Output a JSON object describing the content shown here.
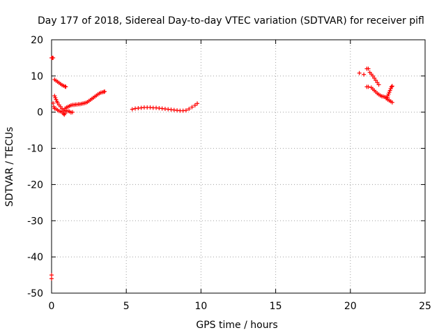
{
  "chart_data": {
    "type": "scatter",
    "title": "Day 177 of 2018, Sidereal Day-to-day VTEC variation (SDTVAR) for receiver pifl",
    "xlabel": "GPS time / hours",
    "ylabel": "SDTVAR / TECUs",
    "xlim": [
      0,
      25
    ],
    "ylim": [
      -50,
      20
    ],
    "xticks": [
      0,
      5,
      10,
      15,
      20,
      25
    ],
    "yticks": [
      -50,
      -40,
      -30,
      -20,
      -10,
      0,
      10,
      20
    ],
    "xtick_labels": [
      "0",
      "5",
      "10",
      "15",
      "20",
      "25"
    ],
    "ytick_labels": [
      "-50",
      "-40",
      "-30",
      "-20",
      "-10",
      "0",
      "10",
      "20"
    ],
    "grid": true,
    "marker": "+",
    "color": "#ff0000",
    "series": [
      {
        "points": [
          [
            0.0,
            15.0
          ],
          [
            0.05,
            15.0
          ],
          [
            0.1,
            15.0
          ],
          [
            0.0,
            -45.0
          ],
          [
            0.0,
            -46.0
          ],
          [
            0.2,
            9.0
          ],
          [
            0.3,
            8.7
          ],
          [
            0.4,
            8.4
          ],
          [
            0.5,
            8.1
          ],
          [
            0.6,
            7.8
          ],
          [
            0.7,
            7.5
          ],
          [
            0.8,
            7.3
          ],
          [
            0.9,
            7.1
          ],
          [
            0.95,
            7.0
          ],
          [
            0.1,
            2.5
          ],
          [
            0.15,
            1.5
          ],
          [
            0.2,
            1.0
          ],
          [
            0.3,
            0.9
          ],
          [
            0.4,
            0.6
          ],
          [
            0.5,
            0.3
          ],
          [
            0.6,
            0.2
          ],
          [
            0.7,
            0.0
          ],
          [
            0.8,
            -0.4
          ],
          [
            0.85,
            -0.7
          ],
          [
            0.9,
            -0.3
          ],
          [
            0.2,
            4.5
          ],
          [
            0.25,
            4.0
          ],
          [
            0.3,
            3.5
          ],
          [
            0.35,
            3.0
          ],
          [
            0.4,
            2.6
          ],
          [
            0.5,
            2.0
          ],
          [
            0.6,
            1.5
          ],
          [
            0.7,
            1.0
          ],
          [
            0.8,
            0.6
          ],
          [
            0.9,
            0.3
          ],
          [
            1.0,
            0.4
          ],
          [
            1.1,
            0.3
          ],
          [
            1.2,
            0.2
          ],
          [
            1.3,
            -0.1
          ],
          [
            1.4,
            0.0
          ],
          [
            0.9,
            1.0
          ],
          [
            1.0,
            1.3
          ],
          [
            1.1,
            1.5
          ],
          [
            1.2,
            1.7
          ],
          [
            1.3,
            1.9
          ],
          [
            1.4,
            2.0
          ],
          [
            1.5,
            2.0
          ],
          [
            1.6,
            2.1
          ],
          [
            1.7,
            2.1
          ],
          [
            1.8,
            2.2
          ],
          [
            1.9,
            2.2
          ],
          [
            2.0,
            2.3
          ],
          [
            2.1,
            2.4
          ],
          [
            2.2,
            2.5
          ],
          [
            2.3,
            2.6
          ],
          [
            2.4,
            2.8
          ],
          [
            2.5,
            3.1
          ],
          [
            2.6,
            3.4
          ],
          [
            2.7,
            3.7
          ],
          [
            2.8,
            4.0
          ],
          [
            2.9,
            4.3
          ],
          [
            3.0,
            4.6
          ],
          [
            3.1,
            4.9
          ],
          [
            3.2,
            5.2
          ],
          [
            3.3,
            5.4
          ],
          [
            3.4,
            5.5
          ],
          [
            3.5,
            5.6
          ],
          [
            3.55,
            5.7
          ],
          [
            5.4,
            0.8
          ],
          [
            5.6,
            1.0
          ],
          [
            5.8,
            1.1
          ],
          [
            6.0,
            1.2
          ],
          [
            6.2,
            1.3
          ],
          [
            6.4,
            1.3
          ],
          [
            6.6,
            1.3
          ],
          [
            6.8,
            1.2
          ],
          [
            7.0,
            1.2
          ],
          [
            7.2,
            1.1
          ],
          [
            7.4,
            1.0
          ],
          [
            7.6,
            0.9
          ],
          [
            7.8,
            0.8
          ],
          [
            8.0,
            0.7
          ],
          [
            8.2,
            0.6
          ],
          [
            8.4,
            0.5
          ],
          [
            8.6,
            0.4
          ],
          [
            8.8,
            0.4
          ],
          [
            9.0,
            0.5
          ],
          [
            9.2,
            0.9
          ],
          [
            9.4,
            1.4
          ],
          [
            9.6,
            1.9
          ],
          [
            9.75,
            2.4
          ],
          [
            20.6,
            10.8
          ],
          [
            20.9,
            10.4
          ],
          [
            21.1,
            12.0
          ],
          [
            21.2,
            12.0
          ],
          [
            21.3,
            11.0
          ],
          [
            21.4,
            10.5
          ],
          [
            21.5,
            10.0
          ],
          [
            21.6,
            9.4
          ],
          [
            21.7,
            8.8
          ],
          [
            21.8,
            8.2
          ],
          [
            21.9,
            7.6
          ],
          [
            21.1,
            7.0
          ],
          [
            21.2,
            7.0
          ],
          [
            21.4,
            6.8
          ],
          [
            21.5,
            6.4
          ],
          [
            21.6,
            6.0
          ],
          [
            21.7,
            5.6
          ],
          [
            21.8,
            5.2
          ],
          [
            21.9,
            4.9
          ],
          [
            22.0,
            4.6
          ],
          [
            22.1,
            4.4
          ],
          [
            22.2,
            4.3
          ],
          [
            22.3,
            4.2
          ],
          [
            22.4,
            4.1
          ],
          [
            22.5,
            4.0
          ],
          [
            22.5,
            4.5
          ],
          [
            22.55,
            5.0
          ],
          [
            22.6,
            5.5
          ],
          [
            22.65,
            6.0
          ],
          [
            22.7,
            6.5
          ],
          [
            22.75,
            7.0
          ],
          [
            22.8,
            7.2
          ],
          [
            22.4,
            3.8
          ],
          [
            22.5,
            3.5
          ],
          [
            22.6,
            3.2
          ],
          [
            22.7,
            3.0
          ],
          [
            22.8,
            2.7
          ]
        ]
      }
    ]
  }
}
